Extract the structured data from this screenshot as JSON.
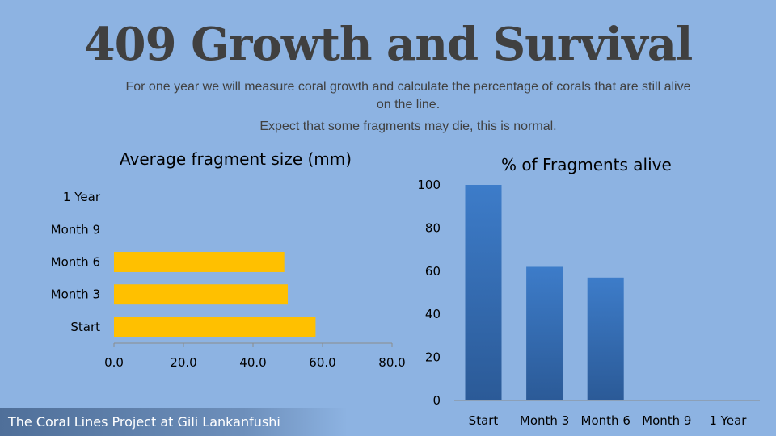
{
  "slide": {
    "title": "409 Growth and Survival",
    "subtitle_line1": "For one year we will measure coral growth and calculate the percentage of corals that are still alive on the line.",
    "subtitle_line2": "Expect that some fragments may die, this is normal.",
    "footer": "The Coral Lines Project at Gili Lankanfushi"
  },
  "colors": {
    "background": "#8db3e2",
    "bar_fill": "#ffc000",
    "column_fill_top": "#3d7cc9",
    "column_fill_bottom": "#2b5a97",
    "axis": "#8c8c8c"
  },
  "chart_data": [
    {
      "type": "bar",
      "orientation": "horizontal",
      "title": "Average fragment size (mm)",
      "categories": [
        "Start",
        "Month 3",
        "Month 6",
        "Month 9",
        "1 Year"
      ],
      "values": [
        58,
        50,
        49,
        null,
        null
      ],
      "xlim": [
        0,
        80
      ],
      "ticks": [
        0,
        20,
        40,
        60,
        80
      ],
      "tick_labels": [
        "0.0",
        "20.0",
        "40.0",
        "60.0",
        "80.0"
      ],
      "grid": false,
      "legend": "none"
    },
    {
      "type": "bar",
      "orientation": "vertical",
      "title": "% of Fragments alive",
      "categories": [
        "Start",
        "Month 3",
        "Month 6",
        "Month 9",
        "1 Year"
      ],
      "values": [
        100,
        62,
        57,
        null,
        null
      ],
      "ylim": [
        0,
        100
      ],
      "ticks": [
        0,
        20,
        40,
        60,
        80,
        100
      ],
      "tick_labels": [
        "0",
        "20",
        "40",
        "60",
        "80",
        "100"
      ],
      "grid": false,
      "legend": "none"
    }
  ]
}
